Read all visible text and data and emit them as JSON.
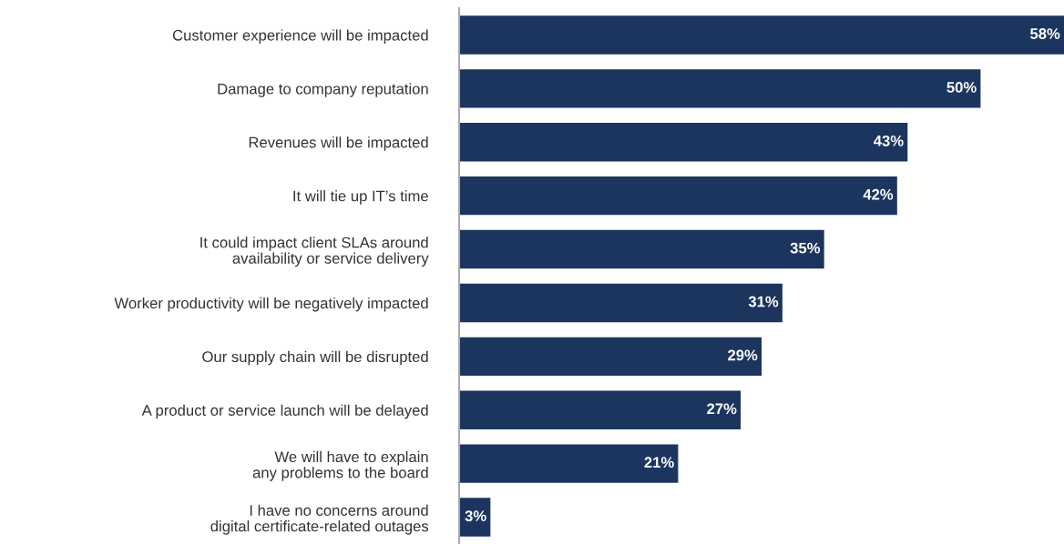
{
  "chart_data": {
    "type": "bar",
    "orientation": "horizontal",
    "categories": [
      "Customer experience will be impacted",
      "Damage to company reputation",
      "Revenues will be impacted",
      "It will tie up IT’s time",
      "It could impact client SLAs around\navailability or service delivery",
      "Worker productivity will be negatively impacted",
      "Our supply chain will be disrupted",
      "A product or service launch will be delayed",
      "We will have to explain\nany problems to the board",
      "I have no concerns around\ndigital certificate-related outages"
    ],
    "values": [
      58,
      50,
      43,
      42,
      35,
      31,
      29,
      27,
      21,
      3
    ],
    "value_labels": [
      "58%",
      "50%",
      "43%",
      "42%",
      "35%",
      "31%",
      "29%",
      "27%",
      "21%",
      "3%"
    ],
    "color": "#1c355e",
    "grid": false,
    "legend": false
  }
}
